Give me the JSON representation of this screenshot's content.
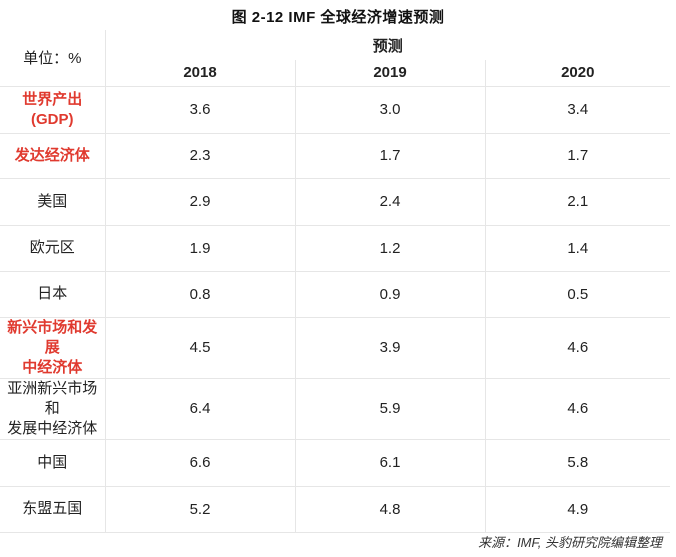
{
  "title": "图 2-12 IMF 全球经济增速预测",
  "chart_data": {
    "type": "table",
    "title": "图 2-12 IMF 全球经济增速预测",
    "unit_label": "单位：%",
    "forecast_label": "预测",
    "columns": [
      "2018",
      "2019",
      "2020"
    ],
    "rows": [
      {
        "label": "世界产出（GDP）",
        "label_lines": [
          "世界产出",
          "(GDP)"
        ],
        "highlight": true,
        "values": [
          "3.6",
          "3.0",
          "3.4"
        ]
      },
      {
        "label": "发达经济体",
        "label_lines": [
          "发达经济体"
        ],
        "highlight": true,
        "values": [
          "2.3",
          "1.7",
          "1.7"
        ]
      },
      {
        "label": "美国",
        "label_lines": [
          "美国"
        ],
        "highlight": false,
        "values": [
          "2.9",
          "2.4",
          "2.1"
        ]
      },
      {
        "label": "欧元区",
        "label_lines": [
          "欧元区"
        ],
        "highlight": false,
        "values": [
          "1.9",
          "1.2",
          "1.4"
        ]
      },
      {
        "label": "日本",
        "label_lines": [
          "日本"
        ],
        "highlight": false,
        "values": [
          "0.8",
          "0.9",
          "0.5"
        ]
      },
      {
        "label": "新兴市场和发展中经济体",
        "label_lines": [
          "新兴市场和发展",
          "中经济体"
        ],
        "highlight": true,
        "values": [
          "4.5",
          "3.9",
          "4.6"
        ]
      },
      {
        "label": "亚洲新兴市场和发展中经济体",
        "label_lines": [
          "亚洲新兴市场和",
          "发展中经济体"
        ],
        "highlight": false,
        "values": [
          "6.4",
          "5.9",
          "4.6"
        ]
      },
      {
        "label": "中国",
        "label_lines": [
          "中国"
        ],
        "highlight": false,
        "values": [
          "6.6",
          "6.1",
          "5.8"
        ]
      },
      {
        "label": "东盟五国",
        "label_lines": [
          "东盟五国"
        ],
        "highlight": false,
        "values": [
          "5.2",
          "4.8",
          "4.9"
        ]
      }
    ]
  },
  "source": "来源：IMF, 头豹研究院编辑整理"
}
